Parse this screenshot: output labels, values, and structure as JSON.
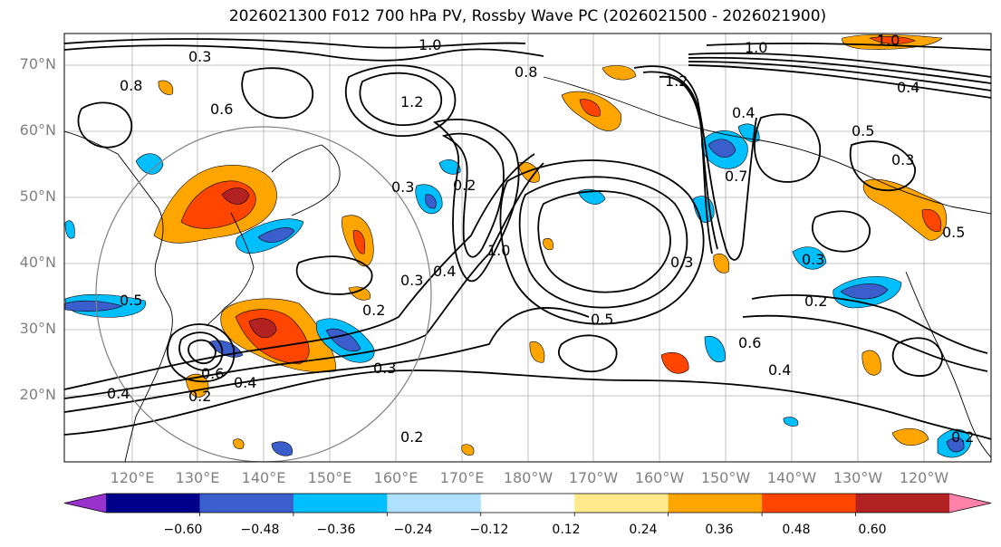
{
  "title": "2026021300 F012 700 hPa PV, Rossby Wave PC (2026021500 - 2026021900)",
  "axes": {
    "lat_labels": [
      "70°N",
      "60°N",
      "50°N",
      "40°N",
      "30°N",
      "20°N"
    ],
    "lon_labels": [
      "120°E",
      "130°E",
      "140°E",
      "150°E",
      "160°E",
      "170°E",
      "180°W",
      "170°W",
      "160°W",
      "150°W",
      "140°W",
      "130°W",
      "120°W"
    ]
  },
  "contour_labels": [
    {
      "text": "1.0"
    },
    {
      "text": "1.0"
    },
    {
      "text": "1.0"
    },
    {
      "text": "1.2"
    },
    {
      "text": "1.2"
    },
    {
      "text": "0.8"
    },
    {
      "text": "0.8"
    },
    {
      "text": "0.4"
    },
    {
      "text": "0.5"
    },
    {
      "text": "0.5"
    },
    {
      "text": "0.3"
    },
    {
      "text": "0.3"
    },
    {
      "text": "0.6"
    },
    {
      "text": "0.6"
    },
    {
      "text": "0.7"
    },
    {
      "text": "0.2"
    },
    {
      "text": "0.2"
    },
    {
      "text": "0.2"
    },
    {
      "text": "0.2"
    },
    {
      "text": "0.3"
    },
    {
      "text": "0.3"
    },
    {
      "text": "0.4"
    },
    {
      "text": "0.4"
    },
    {
      "text": "0.5"
    },
    {
      "text": "0.3"
    },
    {
      "text": "0.3"
    },
    {
      "text": "0.2"
    },
    {
      "text": "0.6"
    },
    {
      "text": "0.5"
    },
    {
      "text": "0.3"
    },
    {
      "text": "0.4"
    },
    {
      "text": "0.4"
    },
    {
      "text": "0.4"
    },
    {
      "text": "0.2"
    },
    {
      "text": "1.0"
    }
  ],
  "colorbar": {
    "colors": [
      "#9932cc",
      "#00008b",
      "#3a5fcd",
      "#00bfff",
      "#b0e0ff",
      "#ffffff",
      "#ffe98a",
      "#ffa500",
      "#ff4500",
      "#b22222",
      "#ff82ab"
    ],
    "ticks": [
      "−0.60",
      "−0.48",
      "−0.36",
      "−0.24",
      "−0.12",
      "0.12",
      "0.24",
      "0.36",
      "0.48",
      "0.60"
    ]
  }
}
